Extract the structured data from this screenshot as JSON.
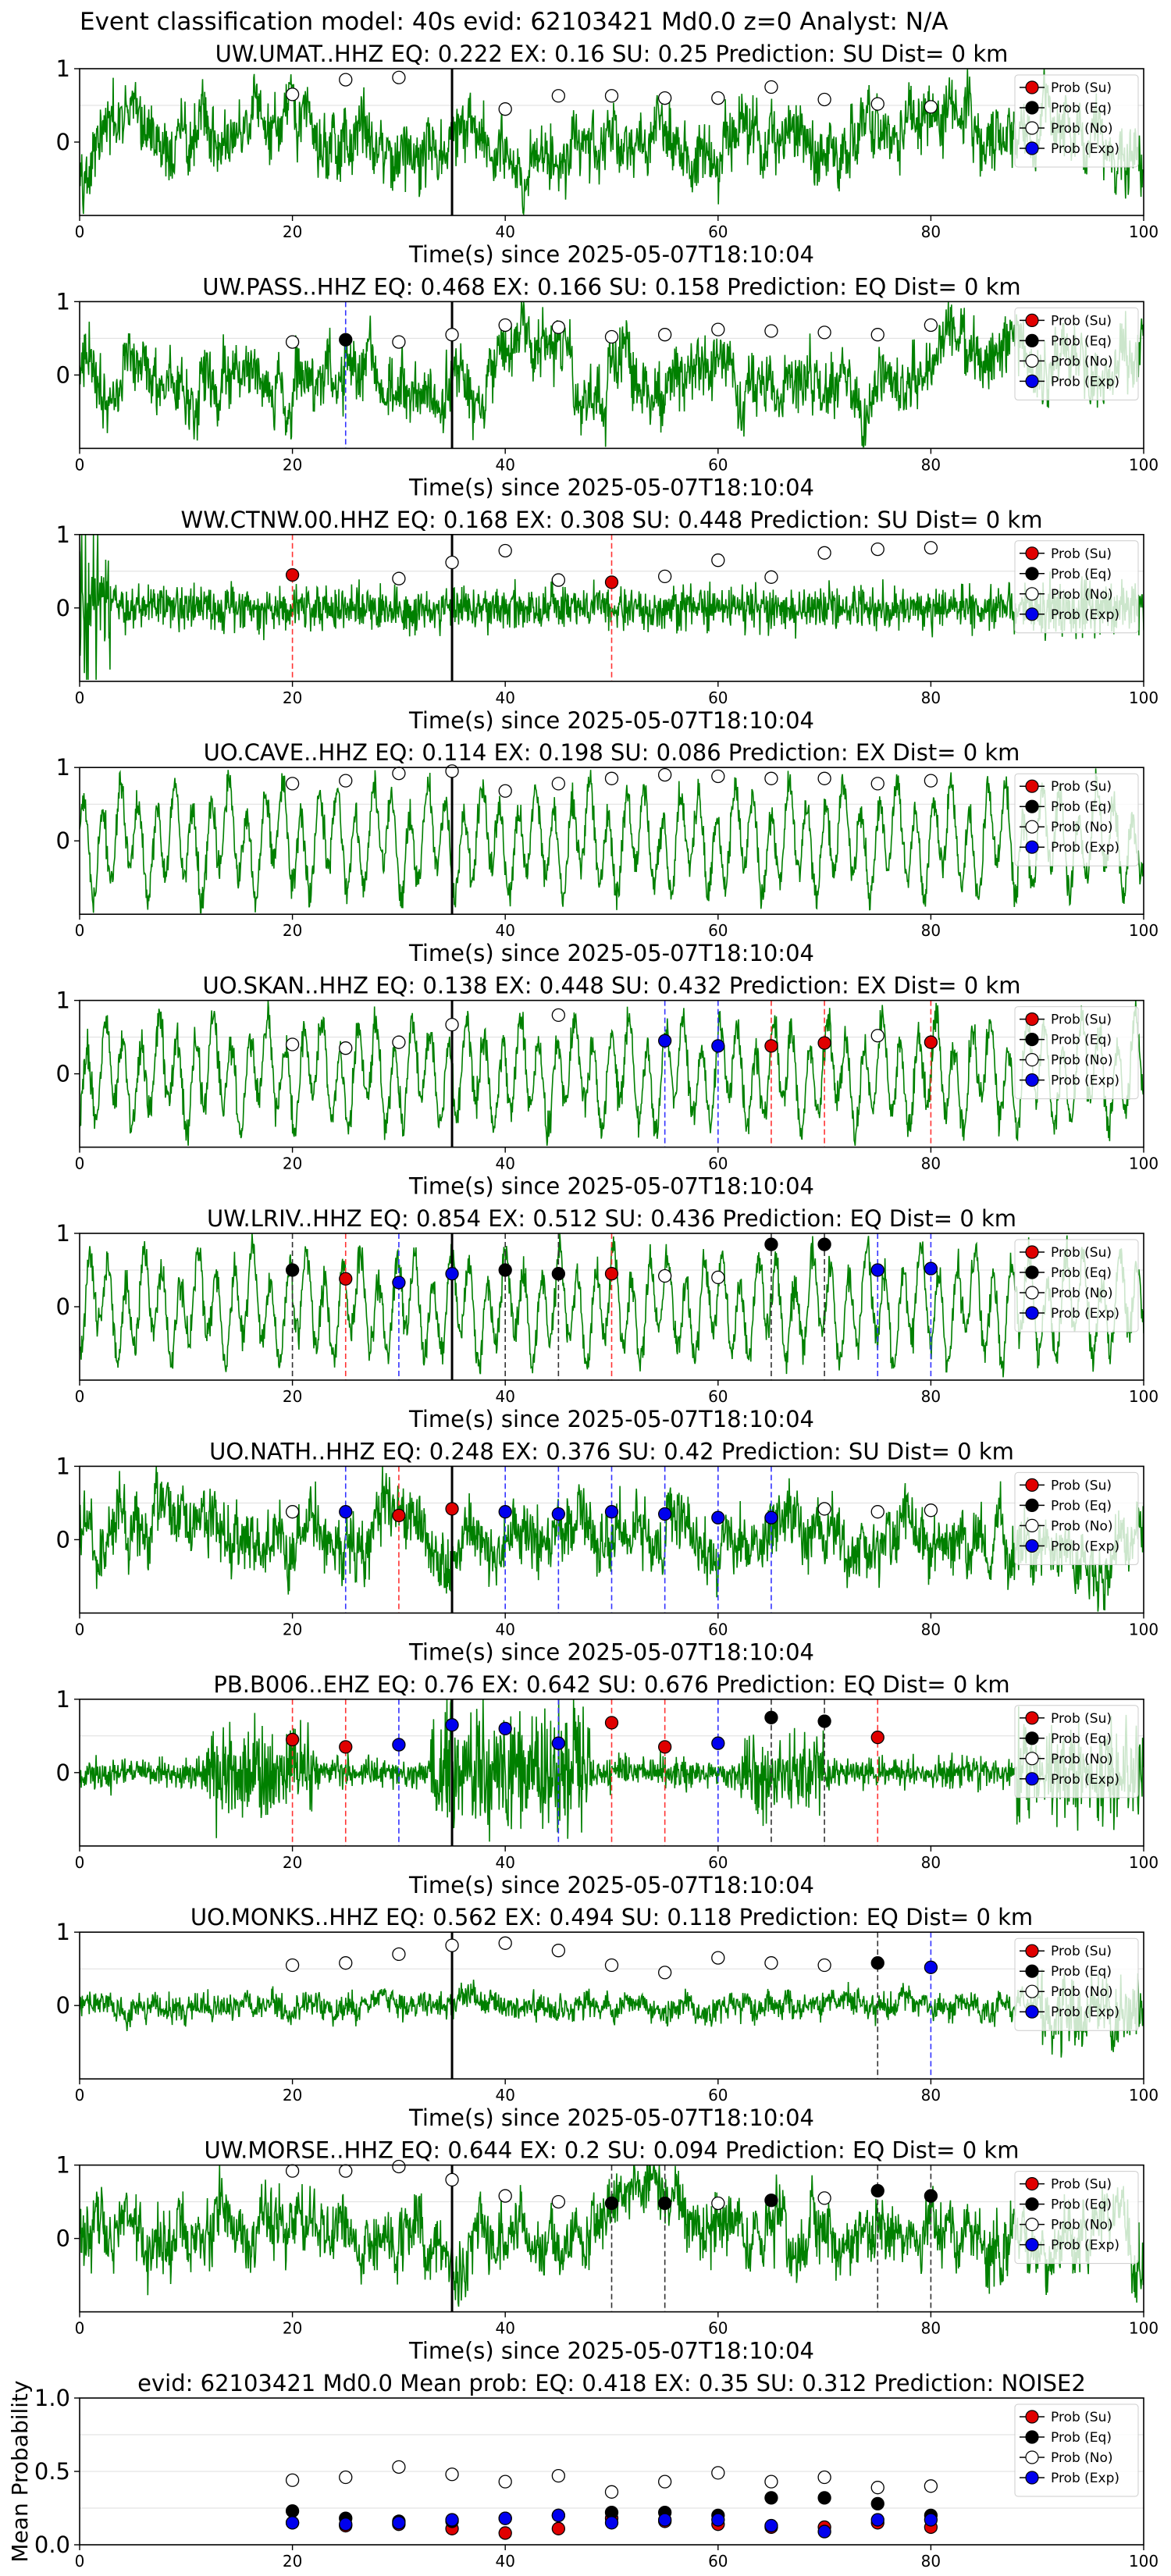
{
  "figure": {
    "suptitle": "Event classification model: 40s evid: 62103421 Md0.0 z=0 Analyst: N/A",
    "legend_labels": [
      "Prob (Su)",
      "Prob (Eq)",
      "Prob (No)",
      "Prob (Exp)"
    ],
    "colors": {
      "waveform": "#008000",
      "su": "#e00000",
      "eq": "#000000",
      "no": "#ffffff",
      "exp": "#0000ee",
      "pick": "#000000"
    },
    "pick_time": 35
  },
  "chart_data": [
    {
      "type": "line",
      "title": "UW.UMAT..HHZ   EQ: 0.222  EX: 0.16  SU: 0.25   Prediction: SU    Dist= 0 km",
      "xlabel": "Time(s) since 2025-05-07T18:10:04",
      "ylabel": "",
      "xlim": [
        0,
        100
      ],
      "ylim": [
        -1,
        1
      ],
      "xticks": [
        0,
        20,
        40,
        60,
        80,
        100
      ],
      "yticks": [
        0,
        1
      ],
      "waveform_style": "normal",
      "markers": {
        "no": [
          [
            20,
            0.65
          ],
          [
            25,
            0.85
          ],
          [
            30,
            0.88
          ],
          [
            40,
            0.45
          ],
          [
            45,
            0.63
          ],
          [
            50,
            0.63
          ],
          [
            55,
            0.6
          ],
          [
            60,
            0.6
          ],
          [
            65,
            0.75
          ],
          [
            70,
            0.58
          ],
          [
            75,
            0.52
          ],
          [
            80,
            0.48
          ]
        ]
      },
      "vlines": []
    },
    {
      "type": "line",
      "title": "UW.PASS..HHZ   EQ: 0.468  EX: 0.166  SU: 0.158   Prediction: EQ    Dist= 0 km",
      "xlabel": "Time(s) since 2025-05-07T18:10:04",
      "ylabel": "",
      "xlim": [
        0,
        100
      ],
      "ylim": [
        -1,
        1
      ],
      "xticks": [
        0,
        20,
        40,
        60,
        80,
        100
      ],
      "yticks": [
        0,
        1
      ],
      "waveform_style": "normal",
      "markers": {
        "eq": [
          [
            25,
            0.48
          ]
        ],
        "no": [
          [
            20,
            0.45
          ],
          [
            30,
            0.45
          ],
          [
            35,
            0.55
          ],
          [
            40,
            0.68
          ],
          [
            45,
            0.65
          ],
          [
            50,
            0.52
          ],
          [
            55,
            0.55
          ],
          [
            60,
            0.62
          ],
          [
            65,
            0.6
          ],
          [
            70,
            0.58
          ],
          [
            75,
            0.55
          ],
          [
            80,
            0.68
          ]
        ]
      },
      "vlines": [
        {
          "x": 25,
          "color": "blue"
        }
      ]
    },
    {
      "type": "line",
      "title": "WW.CTNW.00.HHZ   EQ: 0.168  EX: 0.308  SU: 0.448   Prediction: SU    Dist= 0 km",
      "xlabel": "Time(s) since 2025-05-07T18:10:04",
      "ylabel": "",
      "xlim": [
        0,
        100
      ],
      "ylim": [
        -1,
        1
      ],
      "xticks": [
        0,
        20,
        40,
        60,
        80,
        100
      ],
      "yticks": [
        0,
        1
      ],
      "waveform_style": "noisy",
      "markers": {
        "su": [
          [
            20,
            0.45
          ],
          [
            50,
            0.35
          ]
        ],
        "no": [
          [
            30,
            0.4
          ],
          [
            35,
            0.62
          ],
          [
            40,
            0.78
          ],
          [
            45,
            0.38
          ],
          [
            55,
            0.43
          ],
          [
            60,
            0.65
          ],
          [
            65,
            0.42
          ],
          [
            70,
            0.75
          ],
          [
            75,
            0.8
          ],
          [
            80,
            0.82
          ]
        ]
      },
      "vlines": [
        {
          "x": 20,
          "color": "red"
        },
        {
          "x": 50,
          "color": "red"
        }
      ]
    },
    {
      "type": "line",
      "title": "UO.CAVE..HHZ   EQ: 0.114  EX: 0.198  SU: 0.086   Prediction: EX    Dist= 0 km",
      "xlabel": "Time(s) since 2025-05-07T18:10:04",
      "ylabel": "",
      "xlim": [
        0,
        100
      ],
      "ylim": [
        -1,
        1
      ],
      "xticks": [
        0,
        20,
        40,
        60,
        80,
        100
      ],
      "yticks": [
        0,
        1
      ],
      "waveform_style": "oscillating",
      "markers": {
        "no": [
          [
            20,
            0.78
          ],
          [
            25,
            0.82
          ],
          [
            30,
            0.92
          ],
          [
            35,
            0.95
          ],
          [
            40,
            0.68
          ],
          [
            45,
            0.78
          ],
          [
            50,
            0.85
          ],
          [
            55,
            0.9
          ],
          [
            60,
            0.88
          ],
          [
            65,
            0.85
          ],
          [
            70,
            0.85
          ],
          [
            75,
            0.78
          ],
          [
            80,
            0.82
          ]
        ]
      },
      "vlines": []
    },
    {
      "type": "line",
      "title": "UO.SKAN..HHZ   EQ: 0.138  EX: 0.448  SU: 0.432   Prediction: EX    Dist= 0 km",
      "xlabel": "Time(s) since 2025-05-07T18:10:04",
      "ylabel": "",
      "xlim": [
        0,
        100
      ],
      "ylim": [
        -1,
        1
      ],
      "xticks": [
        0,
        20,
        40,
        60,
        80,
        100
      ],
      "yticks": [
        0,
        1
      ],
      "waveform_style": "oscillating",
      "markers": {
        "su": [
          [
            65,
            0.38
          ],
          [
            70,
            0.42
          ],
          [
            80,
            0.43
          ]
        ],
        "exp": [
          [
            55,
            0.45
          ],
          [
            60,
            0.38
          ]
        ],
        "no": [
          [
            20,
            0.4
          ],
          [
            25,
            0.35
          ],
          [
            30,
            0.43
          ],
          [
            35,
            0.67
          ],
          [
            45,
            0.8
          ],
          [
            75,
            0.52
          ]
        ]
      },
      "vlines": [
        {
          "x": 55,
          "color": "blue"
        },
        {
          "x": 60,
          "color": "blue"
        },
        {
          "x": 65,
          "color": "red"
        },
        {
          "x": 70,
          "color": "red"
        },
        {
          "x": 80,
          "color": "red"
        }
      ]
    },
    {
      "type": "line",
      "title": "UW.LRIV..HHZ   EQ: 0.854  EX: 0.512  SU: 0.436   Prediction: EQ    Dist= 0 km",
      "xlabel": "Time(s) since 2025-05-07T18:10:04",
      "ylabel": "",
      "xlim": [
        0,
        100
      ],
      "ylim": [
        -1,
        1
      ],
      "xticks": [
        0,
        20,
        40,
        60,
        80,
        100
      ],
      "yticks": [
        0,
        1
      ],
      "waveform_style": "oscillating",
      "markers": {
        "su": [
          [
            25,
            0.38
          ],
          [
            50,
            0.45
          ]
        ],
        "eq": [
          [
            20,
            0.5
          ],
          [
            40,
            0.5
          ],
          [
            45,
            0.45
          ],
          [
            65,
            0.85
          ],
          [
            70,
            0.85
          ]
        ],
        "exp": [
          [
            30,
            0.33
          ],
          [
            35,
            0.45
          ],
          [
            75,
            0.5
          ],
          [
            80,
            0.52
          ]
        ],
        "no": [
          [
            55,
            0.42
          ],
          [
            60,
            0.4
          ]
        ]
      },
      "vlines": [
        {
          "x": 20,
          "color": "black"
        },
        {
          "x": 25,
          "color": "red"
        },
        {
          "x": 30,
          "color": "blue"
        },
        {
          "x": 40,
          "color": "black"
        },
        {
          "x": 45,
          "color": "black"
        },
        {
          "x": 50,
          "color": "red"
        },
        {
          "x": 65,
          "color": "black"
        },
        {
          "x": 70,
          "color": "black"
        },
        {
          "x": 75,
          "color": "blue"
        },
        {
          "x": 80,
          "color": "blue"
        }
      ]
    },
    {
      "type": "line",
      "title": "UO.NATH..HHZ   EQ: 0.248  EX: 0.376  SU: 0.42   Prediction: SU    Dist= 0 km",
      "xlabel": "Time(s) since 2025-05-07T18:10:04",
      "ylabel": "",
      "xlim": [
        0,
        100
      ],
      "ylim": [
        -1,
        1
      ],
      "xticks": [
        0,
        20,
        40,
        60,
        80,
        100
      ],
      "yticks": [
        0,
        1
      ],
      "waveform_style": "normal",
      "markers": {
        "su": [
          [
            30,
            0.33
          ],
          [
            35,
            0.42
          ]
        ],
        "exp": [
          [
            25,
            0.38
          ],
          [
            40,
            0.38
          ],
          [
            45,
            0.35
          ],
          [
            50,
            0.38
          ],
          [
            55,
            0.35
          ],
          [
            60,
            0.3
          ],
          [
            65,
            0.3
          ]
        ],
        "no": [
          [
            20,
            0.38
          ],
          [
            70,
            0.42
          ],
          [
            75,
            0.38
          ],
          [
            80,
            0.4
          ]
        ]
      },
      "vlines": [
        {
          "x": 25,
          "color": "blue"
        },
        {
          "x": 30,
          "color": "red"
        },
        {
          "x": 40,
          "color": "blue"
        },
        {
          "x": 45,
          "color": "blue"
        },
        {
          "x": 50,
          "color": "blue"
        },
        {
          "x": 55,
          "color": "blue"
        },
        {
          "x": 60,
          "color": "blue"
        },
        {
          "x": 65,
          "color": "blue"
        }
      ]
    },
    {
      "type": "line",
      "title": "PB.B006..EHZ   EQ: 0.76  EX: 0.642  SU: 0.676   Prediction: EQ    Dist= 0 km",
      "xlabel": "Time(s) since 2025-05-07T18:10:04",
      "ylabel": "",
      "xlim": [
        0,
        100
      ],
      "ylim": [
        -1,
        1
      ],
      "xticks": [
        0,
        20,
        40,
        60,
        80,
        100
      ],
      "yticks": [
        0,
        1
      ],
      "waveform_style": "bursty",
      "markers": {
        "su": [
          [
            20,
            0.45
          ],
          [
            25,
            0.35
          ],
          [
            50,
            0.68
          ],
          [
            55,
            0.35
          ],
          [
            75,
            0.48
          ]
        ],
        "eq": [
          [
            65,
            0.75
          ],
          [
            70,
            0.7
          ]
        ],
        "exp": [
          [
            30,
            0.38
          ],
          [
            35,
            0.65
          ],
          [
            40,
            0.6
          ],
          [
            45,
            0.4
          ],
          [
            60,
            0.4
          ]
        ]
      },
      "vlines": [
        {
          "x": 20,
          "color": "red"
        },
        {
          "x": 25,
          "color": "red"
        },
        {
          "x": 30,
          "color": "blue"
        },
        {
          "x": 45,
          "color": "blue"
        },
        {
          "x": 50,
          "color": "red"
        },
        {
          "x": 55,
          "color": "red"
        },
        {
          "x": 60,
          "color": "blue"
        },
        {
          "x": 65,
          "color": "black"
        },
        {
          "x": 70,
          "color": "black"
        },
        {
          "x": 75,
          "color": "red"
        }
      ]
    },
    {
      "type": "line",
      "title": "UO.MONKS..HHZ   EQ: 0.562  EX: 0.494  SU: 0.118   Prediction: EQ    Dist= 0 km",
      "xlabel": "Time(s) since 2025-05-07T18:10:04",
      "ylabel": "",
      "xlim": [
        0,
        100
      ],
      "ylim": [
        -1,
        1
      ],
      "xticks": [
        0,
        20,
        40,
        60,
        80,
        100
      ],
      "yticks": [
        0,
        1
      ],
      "waveform_style": "quiet",
      "markers": {
        "eq": [
          [
            75,
            0.58
          ]
        ],
        "exp": [
          [
            80,
            0.52
          ]
        ],
        "no": [
          [
            20,
            0.55
          ],
          [
            25,
            0.58
          ],
          [
            30,
            0.7
          ],
          [
            35,
            0.82
          ],
          [
            40,
            0.85
          ],
          [
            45,
            0.75
          ],
          [
            50,
            0.55
          ],
          [
            55,
            0.45
          ],
          [
            60,
            0.65
          ],
          [
            65,
            0.58
          ],
          [
            70,
            0.55
          ]
        ]
      },
      "vlines": [
        {
          "x": 75,
          "color": "black"
        },
        {
          "x": 80,
          "color": "blue"
        }
      ]
    },
    {
      "type": "line",
      "title": "UW.MORSE..HHZ   EQ: 0.644  EX: 0.2  SU: 0.094   Prediction: EQ    Dist= 0 km",
      "xlabel": "Time(s) since 2025-05-07T18:10:04",
      "ylabel": "",
      "xlim": [
        0,
        100
      ],
      "ylim": [
        -1,
        1
      ],
      "xticks": [
        0,
        20,
        40,
        60,
        80,
        100
      ],
      "yticks": [
        0,
        1
      ],
      "waveform_style": "normal",
      "markers": {
        "eq": [
          [
            50,
            0.48
          ],
          [
            55,
            0.48
          ],
          [
            65,
            0.52
          ],
          [
            75,
            0.65
          ],
          [
            80,
            0.58
          ]
        ],
        "no": [
          [
            20,
            0.92
          ],
          [
            25,
            0.92
          ],
          [
            30,
            0.98
          ],
          [
            35,
            0.8
          ],
          [
            40,
            0.58
          ],
          [
            45,
            0.5
          ],
          [
            60,
            0.48
          ],
          [
            70,
            0.55
          ]
        ]
      },
      "vlines": [
        {
          "x": 50,
          "color": "black"
        },
        {
          "x": 55,
          "color": "black"
        },
        {
          "x": 75,
          "color": "black"
        },
        {
          "x": 80,
          "color": "black"
        }
      ]
    },
    {
      "type": "scatter",
      "title": "evid: 62103421  Md0.0   Mean prob:   EQ: 0.418  EX: 0.35  SU: 0.312   Prediction: NOISE2",
      "xlabel": "",
      "ylabel": "Mean Probability",
      "xlim": [
        0,
        100
      ],
      "ylim": [
        0,
        1
      ],
      "xticks": [
        0,
        20,
        40,
        60,
        80,
        100
      ],
      "yticks": [
        0.0,
        0.5,
        1.0
      ],
      "ytick_labels": [
        "0.0",
        "0.5",
        "1.0"
      ],
      "x": [
        20,
        25,
        30,
        35,
        40,
        45,
        50,
        55,
        60,
        65,
        70,
        75,
        80
      ],
      "series": [
        {
          "name": "Prob (Su)",
          "key": "su",
          "values": [
            0.15,
            0.13,
            0.14,
            0.11,
            0.08,
            0.11,
            0.18,
            0.16,
            0.14,
            0.12,
            0.12,
            0.15,
            0.12
          ]
        },
        {
          "name": "Prob (Eq)",
          "key": "eq",
          "values": [
            0.23,
            0.18,
            0.16,
            0.16,
            0.18,
            0.2,
            0.22,
            0.22,
            0.2,
            0.32,
            0.32,
            0.28,
            0.2
          ]
        },
        {
          "name": "Prob (No)",
          "key": "no",
          "values": [
            0.44,
            0.46,
            0.53,
            0.48,
            0.43,
            0.47,
            0.36,
            0.43,
            0.49,
            0.43,
            0.46,
            0.39,
            0.4
          ]
        },
        {
          "name": "Prob (Exp)",
          "key": "exp",
          "values": [
            0.15,
            0.14,
            0.15,
            0.17,
            0.18,
            0.2,
            0.15,
            0.17,
            0.17,
            0.13,
            0.09,
            0.17,
            0.17
          ]
        }
      ]
    }
  ]
}
